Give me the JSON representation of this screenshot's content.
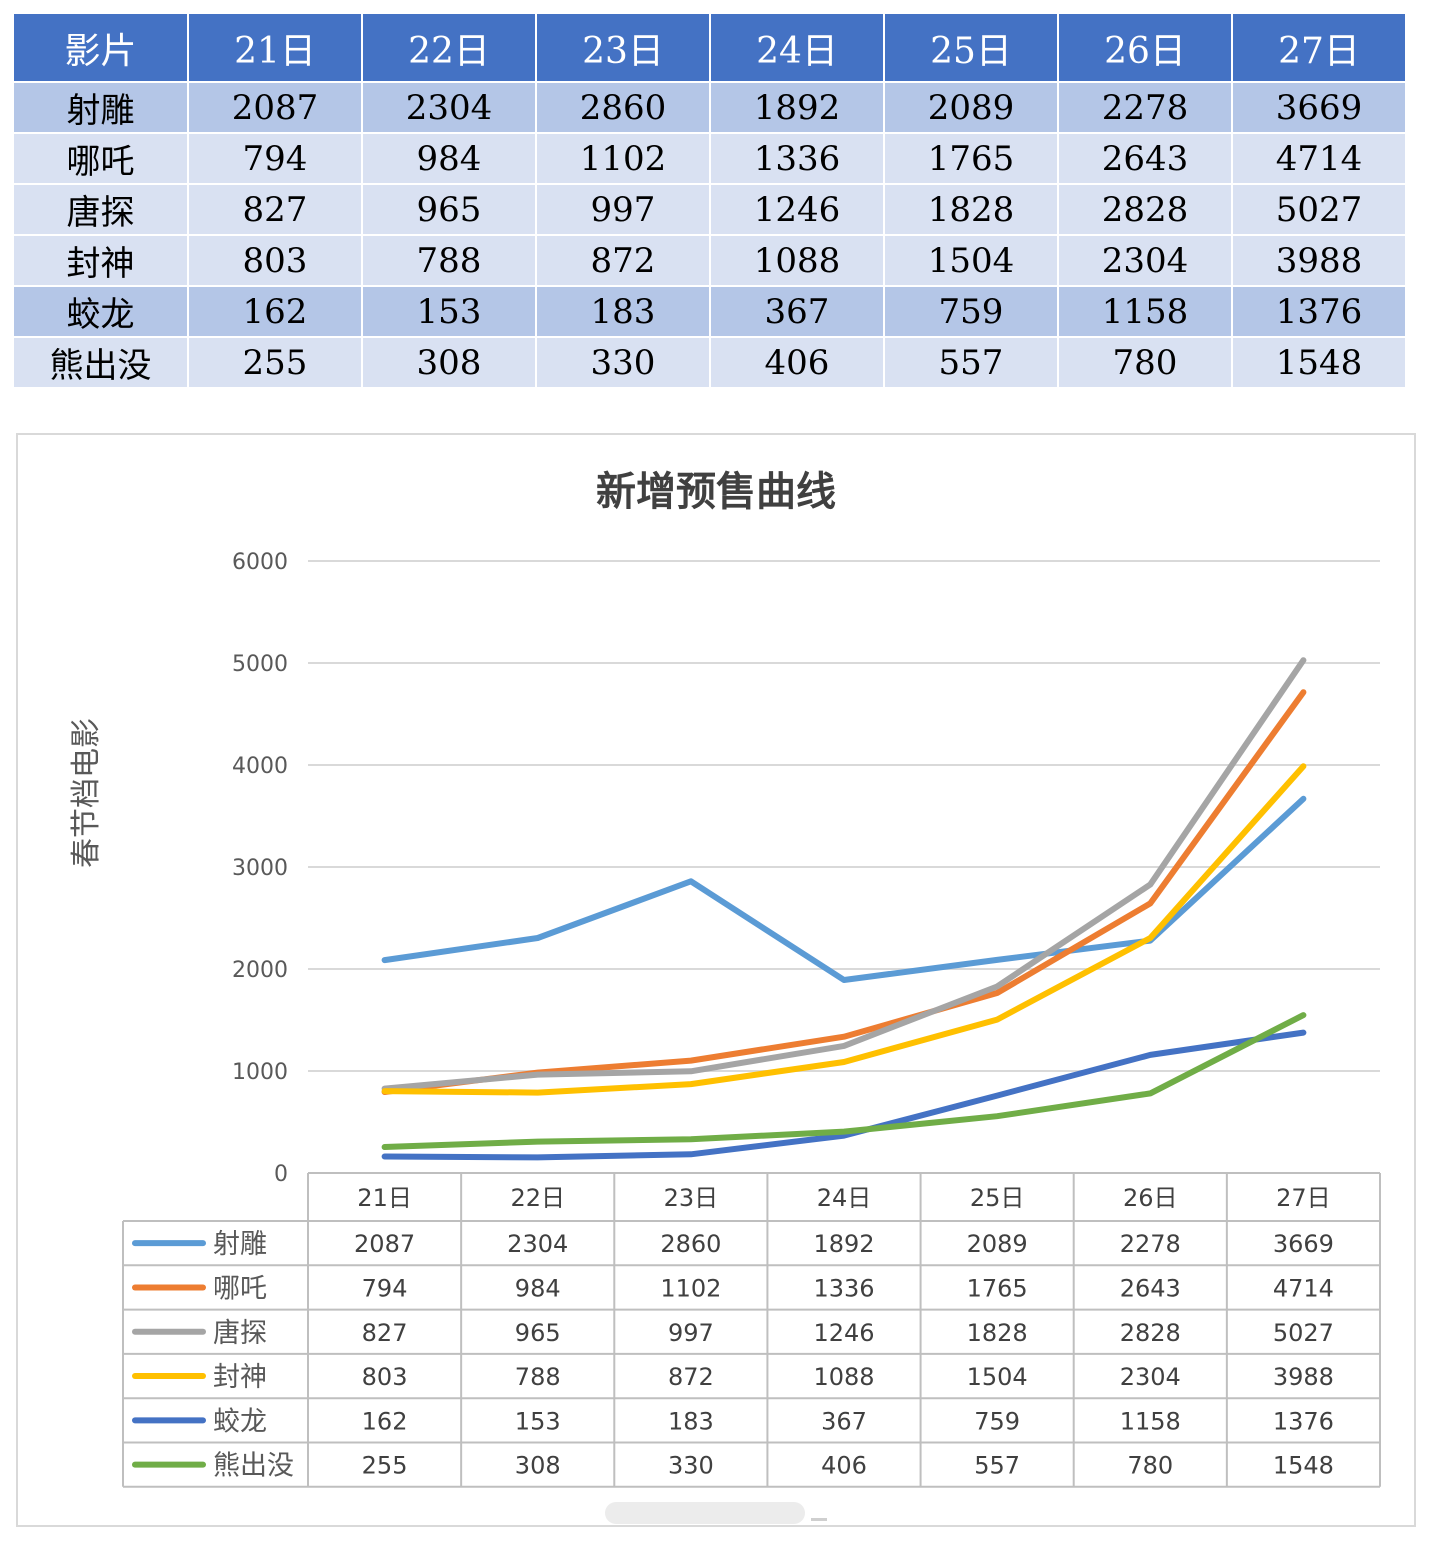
{
  "table": {
    "headers": [
      "影片",
      "21日",
      "22日",
      "23日",
      "24日",
      "25日",
      "26日",
      "27日"
    ],
    "rows": [
      {
        "name": "射雕",
        "values": [
          "2087",
          "2304",
          "2860",
          "1892",
          "2089",
          "2278",
          "3669"
        ]
      },
      {
        "name": "哪吒",
        "values": [
          "794",
          "984",
          "1102",
          "1336",
          "1765",
          "2643",
          "4714"
        ]
      },
      {
        "name": "唐探",
        "values": [
          "827",
          "965",
          "997",
          "1246",
          "1828",
          "2828",
          "5027"
        ]
      },
      {
        "name": "封神",
        "values": [
          "803",
          "788",
          "872",
          "1088",
          "1504",
          "2304",
          "3988"
        ]
      },
      {
        "name": "蛟龙",
        "values": [
          "162",
          "153",
          "183",
          "367",
          "759",
          "1158",
          "1376"
        ]
      },
      {
        "name": "熊出没",
        "values": [
          "255",
          "308",
          "330",
          "406",
          "557",
          "780",
          "1548"
        ]
      }
    ]
  },
  "chart_data": {
    "type": "line",
    "title": "新增预售曲线",
    "ylabel": "春节档电影",
    "xlabel": "",
    "categories": [
      "21日",
      "22日",
      "23日",
      "24日",
      "25日",
      "26日",
      "27日"
    ],
    "ylim": [
      0,
      6000
    ],
    "yticks": [
      0,
      1000,
      2000,
      3000,
      4000,
      5000,
      6000
    ],
    "grid": true,
    "legend": "data-table-bottom",
    "series": [
      {
        "name": "射雕",
        "color": "#5b9bd5",
        "values": [
          2087,
          2304,
          2860,
          1892,
          2089,
          2278,
          3669
        ]
      },
      {
        "name": "哪吒",
        "color": "#ed7d31",
        "values": [
          794,
          984,
          1102,
          1336,
          1765,
          2643,
          4714
        ]
      },
      {
        "name": "唐探",
        "color": "#a5a5a5",
        "values": [
          827,
          965,
          997,
          1246,
          1828,
          2828,
          5027
        ]
      },
      {
        "name": "封神",
        "color": "#ffc000",
        "values": [
          803,
          788,
          872,
          1088,
          1504,
          2304,
          3988
        ]
      },
      {
        "name": "蛟龙",
        "color": "#4472c4",
        "values": [
          162,
          153,
          183,
          367,
          759,
          1158,
          1376
        ]
      },
      {
        "name": "熊出没",
        "color": "#70ad47",
        "values": [
          255,
          308,
          330,
          406,
          557,
          780,
          1548
        ]
      }
    ]
  }
}
